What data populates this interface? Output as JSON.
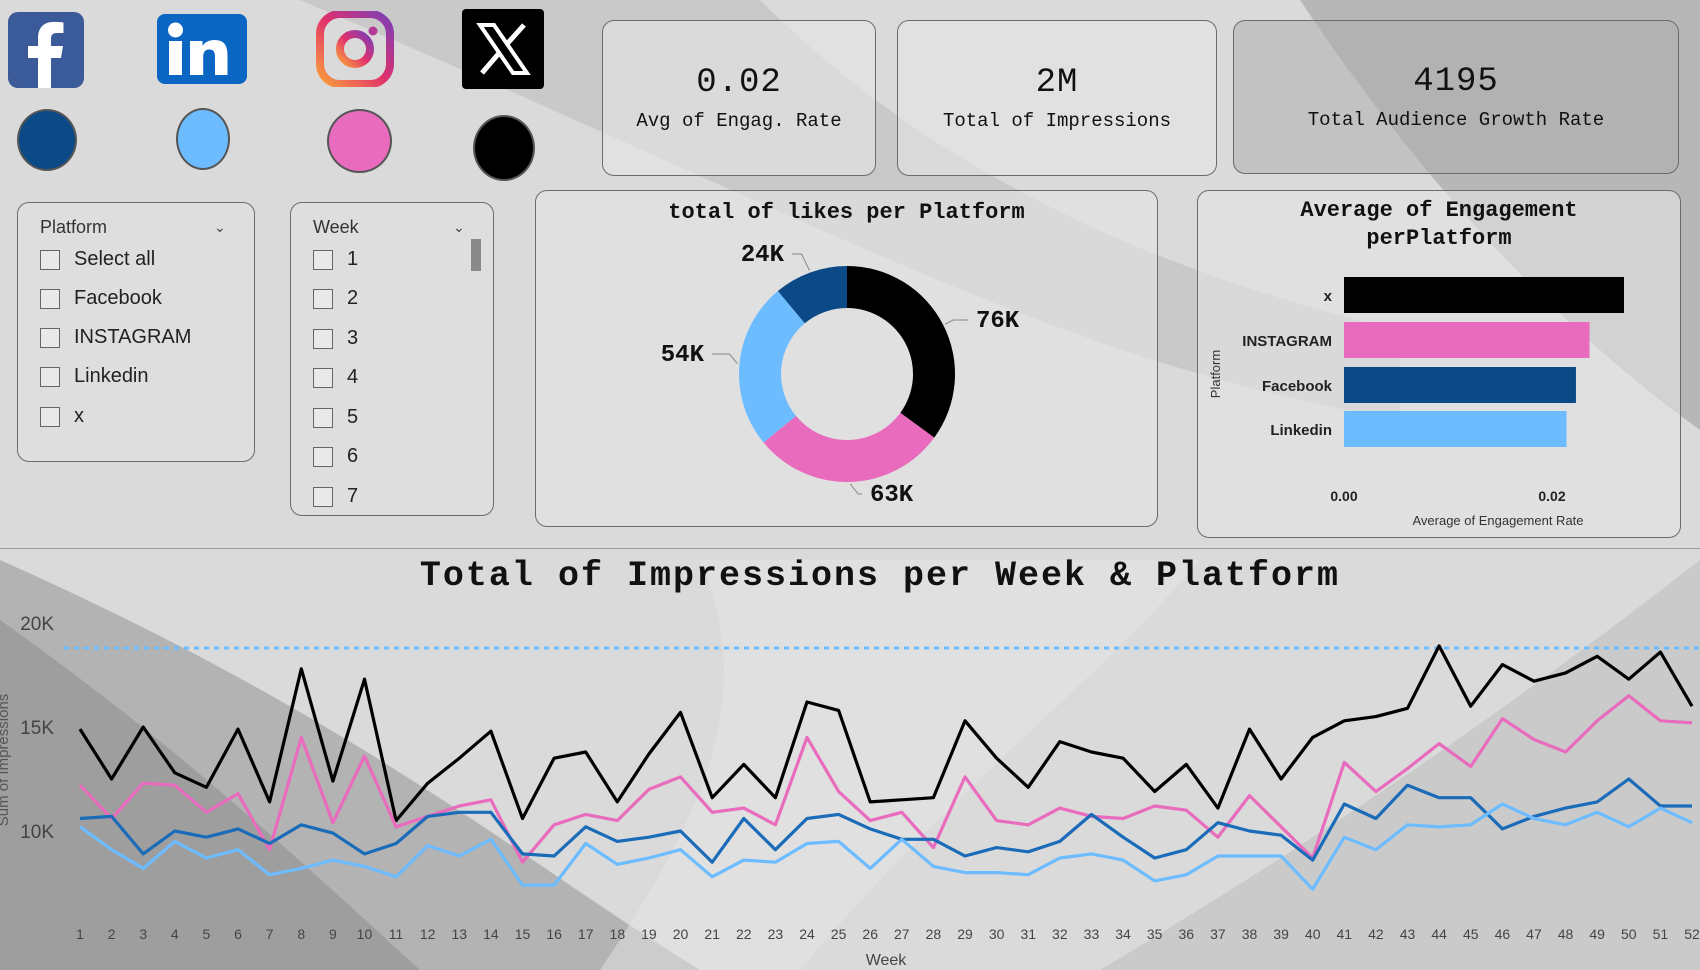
{
  "platforms": [
    {
      "name": "Facebook",
      "icon": "facebook-icon",
      "color": "#0b4a86"
    },
    {
      "name": "Linkedin",
      "icon": "linkedin-icon",
      "color": "#6cbcff"
    },
    {
      "name": "Instagram",
      "icon": "instagram-icon",
      "color": "#e96bbd"
    },
    {
      "name": "x",
      "icon": "x-icon",
      "color": "#000000"
    }
  ],
  "kpis": [
    {
      "value": "0.02",
      "label": "Avg of Engag. Rate"
    },
    {
      "value": "2M",
      "label": "Total of Impressions"
    },
    {
      "value": "4195",
      "label": "Total Audience Growth Rate"
    }
  ],
  "platform_slicer": {
    "header": "Platform",
    "items": [
      "Select all",
      "Facebook",
      "INSTAGRAM",
      "Linkedin",
      "x"
    ]
  },
  "week_slicer": {
    "header": "Week",
    "items": [
      "1",
      "2",
      "3",
      "4",
      "5",
      "6",
      "7"
    ]
  },
  "chart_data": [
    {
      "type": "pie",
      "title": "total of likes per Platform",
      "labels": [
        "x",
        "INSTAGRAM",
        "Linkedin",
        "Facebook"
      ],
      "values": [
        76,
        63,
        54,
        24
      ],
      "data_labels": [
        "76K",
        "63K",
        "54K",
        "24K"
      ],
      "colors": [
        "#000000",
        "#e96bbd",
        "#6cbcff",
        "#0b4a86"
      ],
      "donut": true
    },
    {
      "type": "bar",
      "orientation": "horizontal",
      "title": "Average of Engagement perPlatform",
      "categories": [
        "x",
        "INSTAGRAM",
        "Facebook",
        "Linkedin"
      ],
      "values": [
        0.0268,
        0.0235,
        0.0222,
        0.0213
      ],
      "colors": [
        "#000000",
        "#e96bbd",
        "#0b4a86",
        "#6cbcff"
      ],
      "xlabel": "Average of Engagement Rate",
      "ylabel": "Platform",
      "xticks": [
        "0.00",
        "0.02"
      ],
      "xlim": [
        0,
        0.03
      ]
    },
    {
      "type": "line",
      "title": "Total of Impressions per Week & Platform",
      "xlabel": "Week",
      "ylabel": "Sum of Impressions",
      "x": [
        1,
        2,
        3,
        4,
        5,
        6,
        7,
        8,
        9,
        10,
        11,
        12,
        13,
        14,
        15,
        16,
        17,
        18,
        19,
        20,
        21,
        22,
        23,
        24,
        25,
        26,
        27,
        28,
        29,
        30,
        31,
        32,
        33,
        34,
        35,
        36,
        37,
        38,
        39,
        40,
        41,
        42,
        43,
        44,
        45,
        46,
        47,
        48,
        49,
        50,
        51,
        52
      ],
      "yticks": [
        "20K",
        "15K",
        "10K"
      ],
      "ytick_values": [
        20000,
        15000,
        10000
      ],
      "ylim": [
        5400,
        21000
      ],
      "reference_line": 18800,
      "series": [
        {
          "name": "x",
          "color": "#000000",
          "values": [
            14900,
            12500,
            15000,
            12800,
            12100,
            14900,
            11400,
            17800,
            12400,
            17300,
            10500,
            12300,
            13500,
            14800,
            10600,
            13500,
            13800,
            11400,
            13700,
            15700,
            11600,
            13200,
            11600,
            16200,
            15800,
            11400,
            11500,
            11600,
            15300,
            13500,
            12100,
            14300,
            13800,
            13500,
            11900,
            13200,
            11100,
            14900,
            12500,
            14500,
            15300,
            15500,
            15900,
            18900,
            16000,
            18000,
            17200,
            17600,
            18400,
            17300,
            18600,
            16000
          ]
        },
        {
          "name": "INSTAGRAM",
          "color": "#e96bbd",
          "values": [
            12200,
            10600,
            12300,
            12200,
            10900,
            11800,
            9100,
            14500,
            10400,
            13600,
            10200,
            10700,
            11200,
            11500,
            8500,
            10300,
            10800,
            10500,
            12000,
            12600,
            10900,
            11100,
            10300,
            14500,
            11900,
            10500,
            10900,
            9200,
            12600,
            10500,
            10300,
            11100,
            10700,
            10600,
            11200,
            11000,
            9700,
            11700,
            10200,
            8700,
            13300,
            11900,
            13000,
            14200,
            13100,
            15400,
            14400,
            13800,
            15300,
            16500,
            15300,
            15200
          ]
        },
        {
          "name": "Facebook",
          "color": "#1a6bb8",
          "values": [
            10600,
            10700,
            8900,
            10000,
            9700,
            10100,
            9400,
            10300,
            9900,
            8900,
            9400,
            10700,
            10900,
            10900,
            8900,
            8800,
            10200,
            9500,
            9700,
            10000,
            8500,
            10600,
            9100,
            10600,
            10800,
            10100,
            9600,
            9600,
            8800,
            9200,
            9000,
            9500,
            10800,
            9700,
            8700,
            9100,
            10400,
            10000,
            9800,
            8600,
            11300,
            10600,
            12200,
            11600,
            11600,
            10100,
            10700,
            11100,
            11400,
            12500,
            11200,
            11200
          ]
        },
        {
          "name": "Linkedin",
          "color": "#6cbcff",
          "values": [
            10200,
            9100,
            8200,
            9500,
            8700,
            9100,
            7900,
            8200,
            8600,
            8300,
            7800,
            9300,
            8800,
            9600,
            7400,
            7400,
            9400,
            8400,
            8700,
            9100,
            7800,
            8600,
            8500,
            9400,
            9500,
            8200,
            9600,
            8300,
            8000,
            8000,
            7900,
            8700,
            8900,
            8600,
            7600,
            7900,
            8800,
            8800,
            8800,
            7200,
            9700,
            9100,
            10300,
            10200,
            10300,
            11300,
            10600,
            10300,
            10900,
            10200,
            11100,
            10400
          ]
        }
      ]
    }
  ]
}
